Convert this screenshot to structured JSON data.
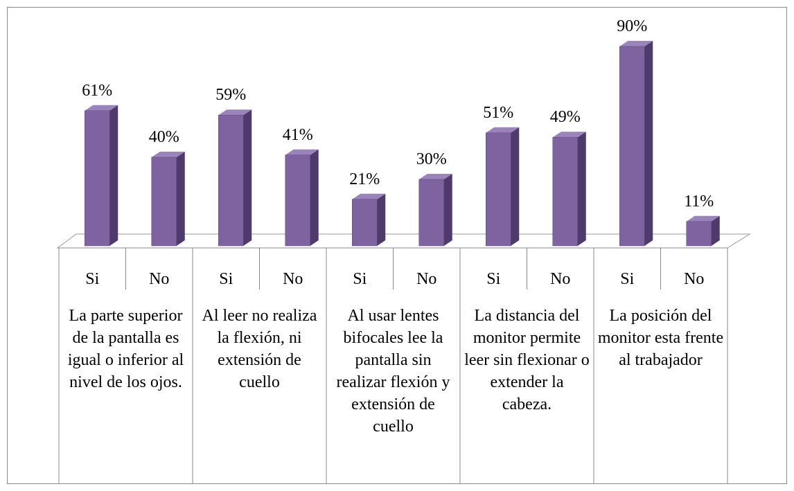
{
  "chart_data": {
    "type": "bar",
    "categories": [
      "Si",
      "No",
      "Si",
      "No",
      "Si",
      "No",
      "Si",
      "No",
      "Si",
      "No"
    ],
    "groups": [
      "La parte superior de la pantalla es igual o inferior al nivel de los ojos.",
      "Al leer no realiza la flexión, ni extensión de cuello",
      "Al usar lentes bifocales lee la pantalla sin realizar flexión y extensión de cuello",
      "La distancia del monitor permite leer sin flexionar o extender la cabeza.",
      "La posición del monitor esta frente al trabajador"
    ],
    "values": [
      61,
      40,
      59,
      41,
      21,
      30,
      51,
      49,
      90,
      11
    ],
    "value_labels": [
      "61%",
      "40%",
      "59%",
      "41%",
      "21%",
      "30%",
      "51%",
      "49%",
      "90%",
      "11%"
    ],
    "color": "#7f63a1"
  }
}
